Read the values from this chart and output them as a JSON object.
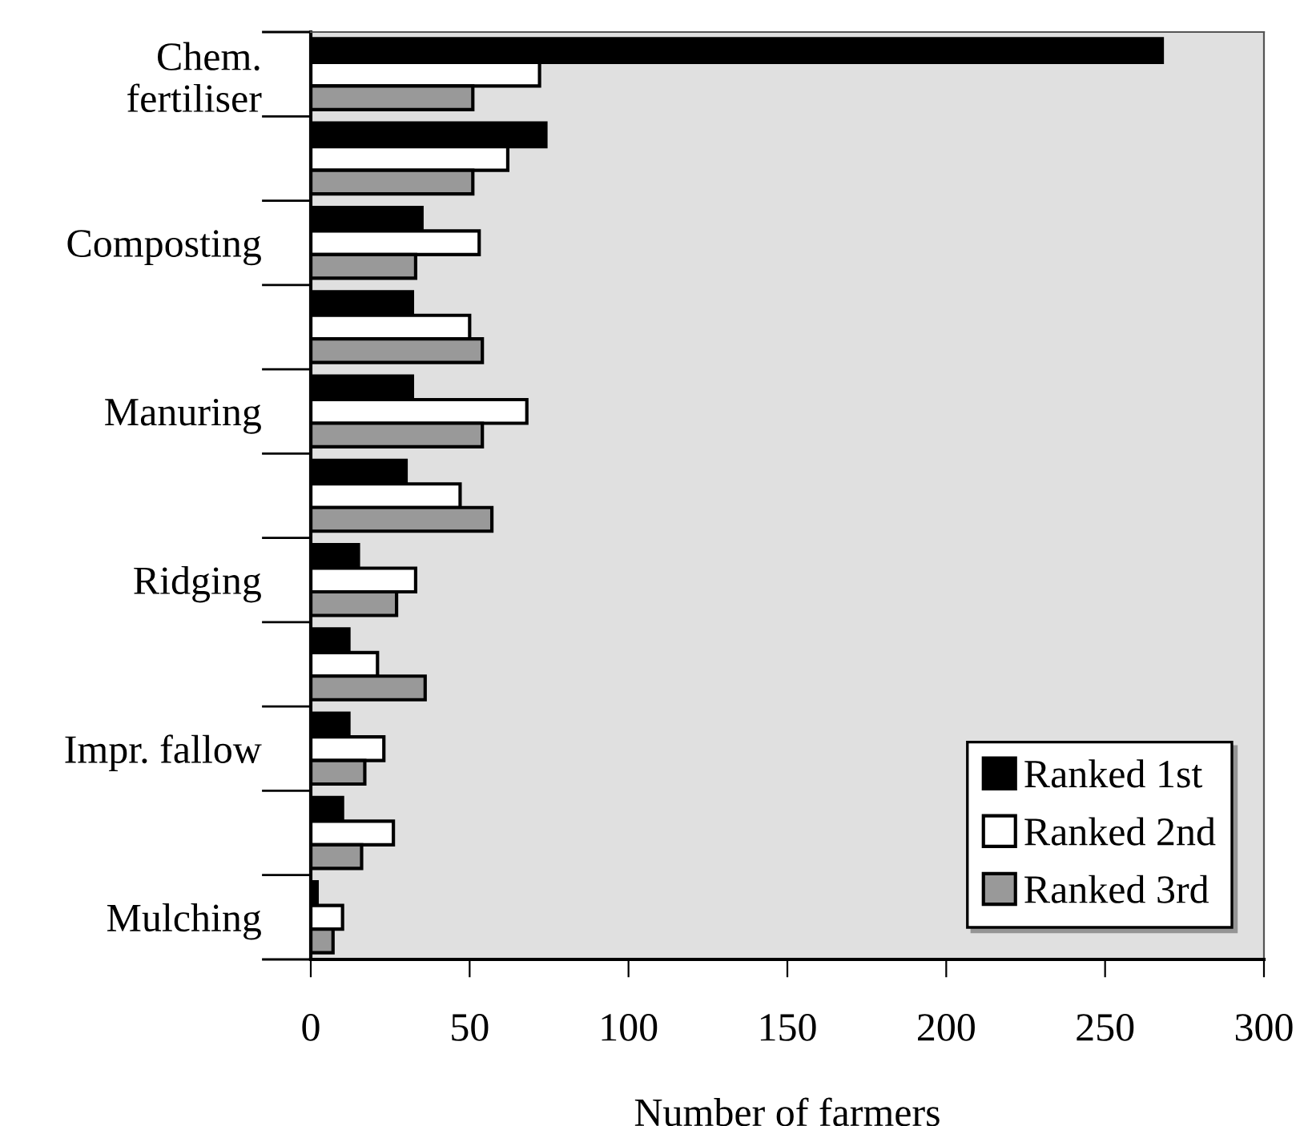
{
  "chart_data": {
    "type": "bar",
    "orientation": "horizontal",
    "xlabel": "Number of farmers",
    "categories": [
      "Chem.\nfertiliser",
      null,
      "Composting",
      null,
      "Manuring",
      null,
      "Ridging",
      null,
      "Impr. fallow",
      null,
      "Mulching"
    ],
    "series": [
      {
        "name": "Ranked 1st",
        "color": "#000000",
        "values": [
          268,
          74,
          35,
          32,
          32,
          30,
          15,
          12,
          12,
          10,
          2
        ]
      },
      {
        "name": "Ranked 2nd",
        "color": "#ffffff",
        "values": [
          72,
          62,
          53,
          50,
          68,
          47,
          33,
          21,
          23,
          26,
          10
        ]
      },
      {
        "name": "Ranked 3rd",
        "color": "#999999",
        "values": [
          51,
          51,
          33,
          54,
          54,
          57,
          27,
          36,
          17,
          16,
          7
        ]
      }
    ],
    "xlim": [
      0,
      300
    ],
    "xticks": [
      0,
      50,
      100,
      150,
      200,
      250,
      300
    ],
    "grid": false,
    "legend": "bottom right"
  }
}
